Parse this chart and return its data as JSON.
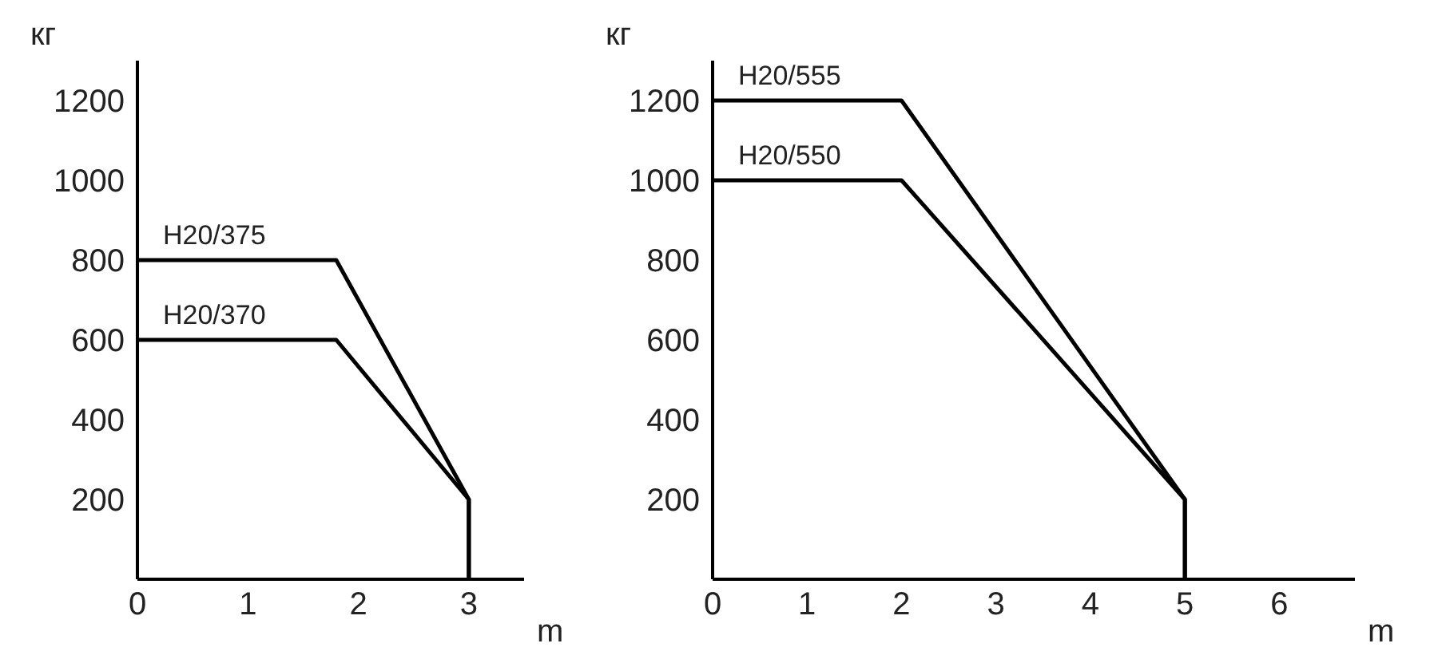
{
  "chart_data": [
    {
      "type": "line",
      "xlabel": "m",
      "ylabel": "кг",
      "xlim": [
        0,
        3.5
      ],
      "xticks": [
        0,
        1,
        2,
        3
      ],
      "ylim": [
        0,
        1300
      ],
      "yticks": [
        200,
        400,
        600,
        800,
        1000,
        1200
      ],
      "grid": false,
      "legend": false,
      "marker": "none",
      "line_style": "solid",
      "series": [
        {
          "name": "H20/375",
          "color": "#000000",
          "x": [
            0,
            1.8,
            3,
            3
          ],
          "values": [
            800,
            800,
            200,
            0
          ]
        },
        {
          "name": "H20/370",
          "color": "#000000",
          "x": [
            0,
            1.8,
            3,
            3
          ],
          "values": [
            600,
            600,
            200,
            0
          ]
        }
      ]
    },
    {
      "type": "line",
      "xlabel": "m",
      "ylabel": "кг",
      "xlim": [
        0,
        6.8
      ],
      "xticks": [
        0,
        1,
        2,
        3,
        4,
        5,
        6
      ],
      "ylim": [
        0,
        1300
      ],
      "yticks": [
        200,
        400,
        600,
        800,
        1000,
        1200
      ],
      "grid": false,
      "legend": false,
      "marker": "none",
      "line_style": "solid",
      "series": [
        {
          "name": "H20/555",
          "color": "#000000",
          "x": [
            0,
            2,
            5,
            5
          ],
          "values": [
            1200,
            1200,
            200,
            0
          ]
        },
        {
          "name": "H20/550",
          "color": "#000000",
          "x": [
            0,
            2,
            5,
            5
          ],
          "values": [
            1000,
            1000,
            200,
            0
          ]
        }
      ]
    }
  ]
}
